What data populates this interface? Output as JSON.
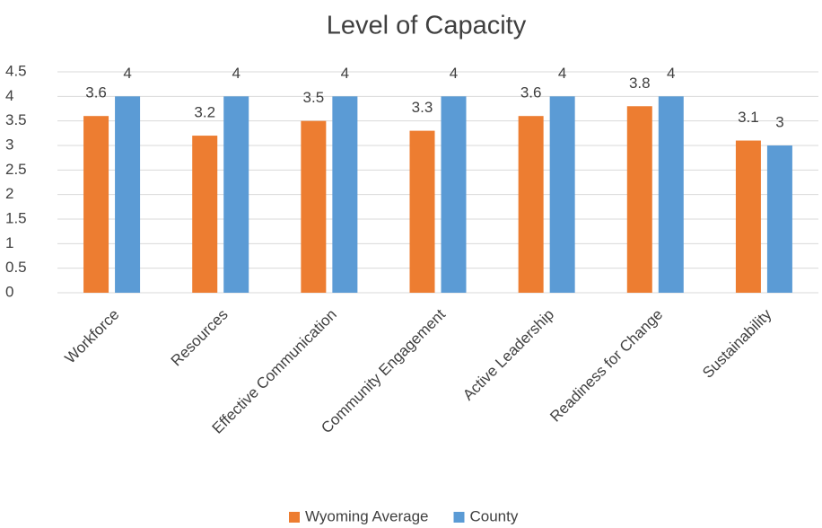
{
  "chart_data": {
    "type": "bar",
    "title": "Level of Capacity",
    "categories": [
      "Workforce",
      "Resources",
      "Effective Communication",
      "Community Engagement",
      "Active Leadership",
      "Readiness for Change",
      "Sustainability"
    ],
    "series": [
      {
        "name": "Wyoming Average",
        "color": "#ed7d31",
        "values": [
          3.6,
          3.2,
          3.5,
          3.3,
          3.6,
          3.8,
          3.1
        ]
      },
      {
        "name": "County",
        "color": "#5b9bd5",
        "values": [
          4,
          4,
          4,
          4,
          4,
          4,
          3
        ]
      }
    ],
    "ylim": [
      0,
      4.5
    ],
    "yticks": [
      0,
      0.5,
      1,
      1.5,
      2,
      2.5,
      3,
      3.5,
      4,
      4.5
    ],
    "grid": true,
    "legend": "bottom"
  }
}
